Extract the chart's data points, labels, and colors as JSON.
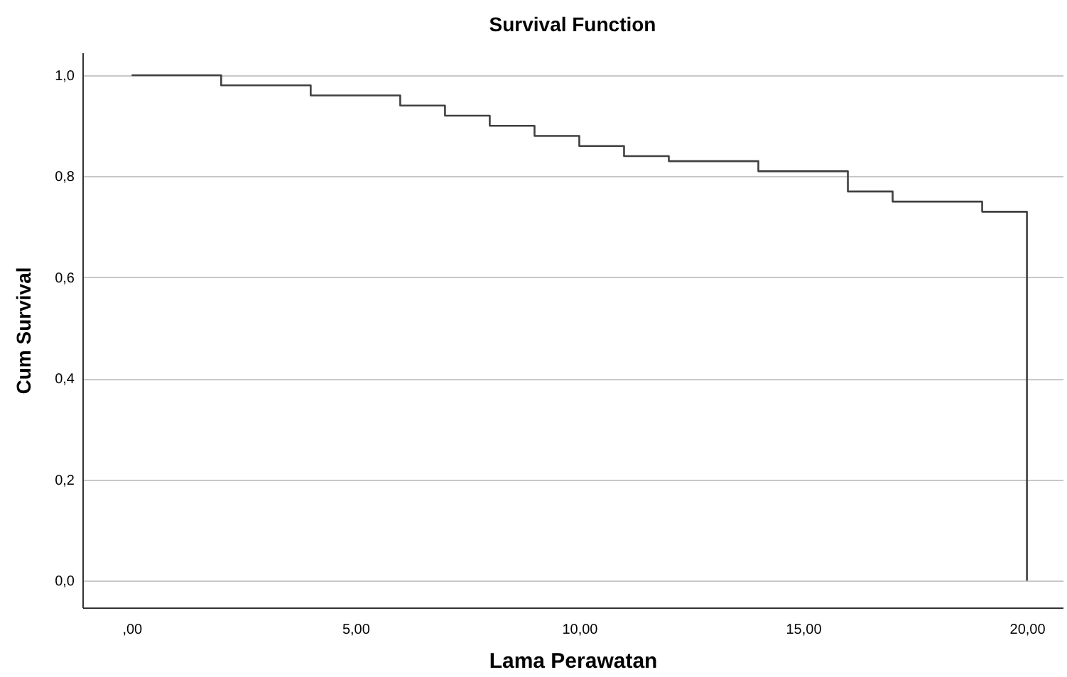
{
  "chart_data": {
    "type": "step",
    "title": "Survival Function",
    "xlabel": "Lama Perawatan",
    "ylabel": "Cum Survival",
    "x": [
      0,
      2,
      4,
      6,
      7,
      8,
      9,
      10,
      11,
      12,
      14,
      16,
      17,
      19,
      20,
      20
    ],
    "series": [
      {
        "color": "#404040",
        "values": [
          1.0,
          0.98,
          0.96,
          0.94,
          0.92,
          0.9,
          0.88,
          0.86,
          0.84,
          0.83,
          0.81,
          0.77,
          0.75,
          0.73,
          0.73,
          0.0
        ]
      }
    ],
    "xlim": [
      -1.1,
      20.8
    ],
    "ylim": [
      -0.053,
      1.045
    ],
    "xticks": [
      {
        "value": 0,
        "label": ",00"
      },
      {
        "value": 5,
        "label": "5,00"
      },
      {
        "value": 10,
        "label": "10,00"
      },
      {
        "value": 15,
        "label": "15,00"
      },
      {
        "value": 20,
        "label": "20,00"
      }
    ],
    "yticks": [
      {
        "value": 0,
        "label": "0,0"
      },
      {
        "value": 0.2,
        "label": "0,2"
      },
      {
        "value": 0.4,
        "label": "0,4"
      },
      {
        "value": 0.6,
        "label": "0,6"
      },
      {
        "value": 0.8,
        "label": "0,8"
      },
      {
        "value": 1,
        "label": "1,0"
      }
    ],
    "grid": "y",
    "line_style": "solid"
  }
}
